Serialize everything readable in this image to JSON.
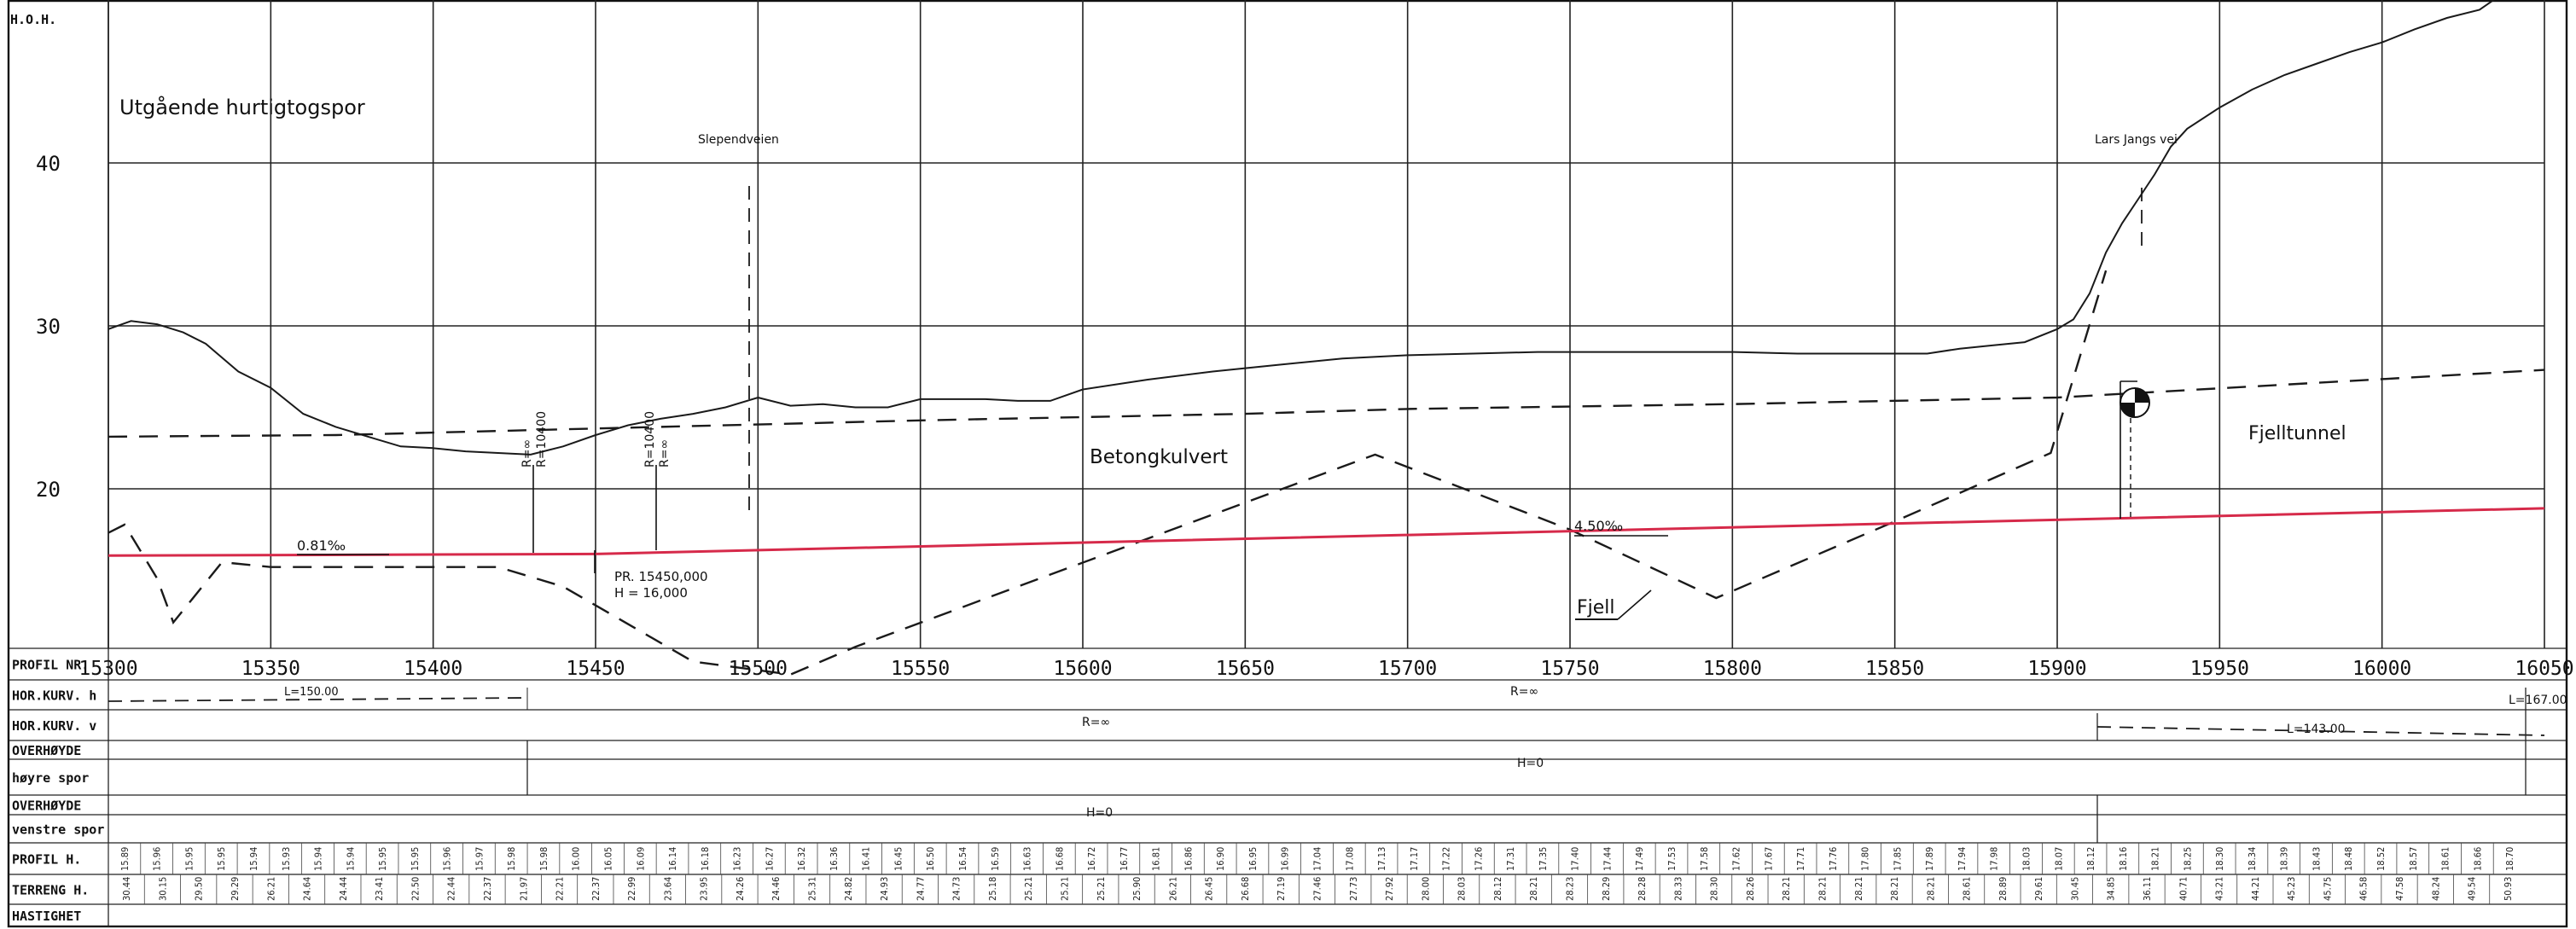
{
  "axis": {
    "y_label": "H.O.H.",
    "y_ticks": [
      {
        "value": 20,
        "label": "20"
      },
      {
        "value": 30,
        "label": "30"
      },
      {
        "value": 40,
        "label": "40"
      }
    ],
    "x_ticks": [
      "15300",
      "15350",
      "15400",
      "15450",
      "15500",
      "15550",
      "15600",
      "15650",
      "15700",
      "15750",
      "15800",
      "15850",
      "15900",
      "15950",
      "16000",
      "16050"
    ]
  },
  "labels": {
    "title": "Utgående hurtigtogspor",
    "road_1": "Slependveien",
    "road_2": "Lars Jangs vei",
    "structure_1": "Betongkulvert",
    "structure_2": "Fjelltunnel",
    "rock": "Fjell",
    "grade_1": "0.81‰",
    "grade_2": "4.50‰",
    "vc_1_top": "R=∞",
    "vc_1_bottom": "R=10400",
    "vc_2_top": "R=10400",
    "vc_2_bottom": "R=∞",
    "pvi_line1": "PR. 15450,000",
    "pvi_line2": "H = 16,000"
  },
  "table": {
    "rows": [
      {
        "label": "PROFIL NR.",
        "key": "profil_nr"
      },
      {
        "label": "HOR.KURV. h",
        "key": "hor_kurv_h"
      },
      {
        "label": "HOR.KURV. v",
        "key": "hor_kurv_v"
      },
      {
        "label": "OVERHØYDE",
        "key": "overhoyde_h_1"
      },
      {
        "label": "høyre spor",
        "key": "overhoyde_h_2"
      },
      {
        "label": "OVERHØYDE",
        "key": "overhoyde_v_1"
      },
      {
        "label": "venstre spor",
        "key": "overhoyde_v_2"
      },
      {
        "label": "PROFIL H.",
        "key": "profil_h"
      },
      {
        "label": "TERRENG H.",
        "key": "terreng_h"
      },
      {
        "label": "HASTIGHET",
        "key": "hastighet"
      }
    ],
    "hor_kurv_h_texts": [
      "L=150.00",
      "R=∞",
      "L=167.00"
    ],
    "hor_kurv_v_texts": [
      "R=∞",
      "L=143.00"
    ],
    "overhoyde_texts": [
      "H=0",
      "H=0"
    ]
  },
  "chart_data": {
    "type": "line",
    "xlim": [
      15300,
      16050
    ],
    "ylim": [
      10,
      50
    ],
    "series": [
      {
        "name": "terrain",
        "x": [
          15300,
          15307,
          15315,
          15323,
          15330,
          15340,
          15350,
          15360,
          15370,
          15380,
          15390,
          15400,
          15410,
          15420,
          15430,
          15440,
          15450,
          15460,
          15470,
          15480,
          15490,
          15500,
          15510,
          15520,
          15530,
          15540,
          15550,
          15560,
          15570,
          15580,
          15590,
          15600,
          15620,
          15640,
          15660,
          15680,
          15700,
          15720,
          15740,
          15760,
          15780,
          15800,
          15820,
          15840,
          15860,
          15870,
          15880,
          15890,
          15900,
          15905,
          15910,
          15915,
          15920,
          15925,
          15930,
          15935,
          15940,
          15950,
          15960,
          15970,
          15980,
          15990,
          16000,
          16010,
          16020,
          16030,
          16038
        ],
        "y": [
          29.8,
          30.3,
          30.1,
          29.6,
          28.9,
          27.2,
          26.2,
          24.6,
          23.8,
          23.2,
          22.6,
          22.5,
          22.3,
          22.2,
          22.1,
          22.6,
          23.3,
          23.9,
          24.3,
          24.6,
          25.0,
          25.6,
          25.1,
          25.2,
          25.0,
          25.0,
          25.5,
          25.5,
          25.5,
          25.4,
          25.4,
          26.1,
          26.7,
          27.2,
          27.6,
          28.0,
          28.2,
          28.3,
          28.4,
          28.4,
          28.4,
          28.4,
          28.3,
          28.3,
          28.3,
          28.6,
          28.8,
          29.0,
          29.8,
          30.4,
          32.0,
          34.5,
          36.3,
          37.8,
          39.3,
          41.0,
          42.1,
          43.4,
          44.5,
          45.4,
          46.1,
          46.8,
          47.4,
          48.2,
          48.9,
          49.4,
          50.5
        ]
      },
      {
        "name": "rock",
        "x": [
          15300,
          15305,
          15315,
          15320,
          15335,
          15350,
          15360,
          15370,
          15380,
          15390,
          15400,
          15420,
          15440,
          15480,
          15510,
          15530,
          15580,
          15690,
          15750,
          15795,
          15850,
          15898,
          15915
        ],
        "y": [
          17.3,
          17.8,
          14.5,
          11.8,
          15.5,
          15.2,
          15.2,
          15.2,
          15.2,
          15.2,
          15.2,
          15.2,
          14.0,
          9.4,
          8.6,
          10.3,
          14.0,
          22.1,
          17.5,
          13.3,
          18.0,
          22.2,
          33.4
        ]
      },
      {
        "name": "formation",
        "x": [
          15300,
          15370,
          15450,
          15550,
          15650,
          15700,
          15800,
          15900,
          16050
        ],
        "y": [
          23.2,
          23.3,
          23.7,
          24.2,
          24.6,
          24.9,
          25.2,
          25.6,
          27.3
        ]
      },
      {
        "name": "gradeline",
        "x": [
          15300,
          15450,
          16050
        ],
        "y": [
          15.9,
          16.0,
          18.8
        ]
      }
    ],
    "title": "Utgående hurtigtogspor",
    "ylabel": "H.O.H.",
    "xlabel": "PROFIL NR.",
    "profil_h": [
      "15.89",
      "15.96",
      "15.95",
      "15.95",
      "15.94",
      "15.93",
      "15.94",
      "15.94",
      "15.95",
      "15.95",
      "15.96",
      "15.97",
      "15.98",
      "15.98",
      "16.00",
      "16.05",
      "16.09",
      "16.14",
      "16.18",
      "16.23",
      "16.27",
      "16.32",
      "16.36",
      "16.41",
      "16.45",
      "16.50",
      "16.54",
      "16.59",
      "16.63",
      "16.68",
      "16.72",
      "16.77",
      "16.81",
      "16.86",
      "16.90",
      "16.95",
      "16.99",
      "17.04",
      "17.08",
      "17.13",
      "17.17",
      "17.22",
      "17.26",
      "17.31",
      "17.35",
      "17.40",
      "17.44",
      "17.49",
      "17.53",
      "17.58",
      "17.62",
      "17.67",
      "17.71",
      "17.76",
      "17.80",
      "17.85",
      "17.89",
      "17.94",
      "17.98",
      "18.03",
      "18.07",
      "18.12",
      "18.16",
      "18.21",
      "18.25",
      "18.30",
      "18.34",
      "18.39",
      "18.43",
      "18.48",
      "18.52",
      "18.57",
      "18.61",
      "18.66",
      "18.70"
    ],
    "terreng_h": [
      "30.44",
      "30.15",
      "29.50",
      "29.29",
      "26.21",
      "24.64",
      "24.44",
      "23.41",
      "22.50",
      "22.44",
      "22.37",
      "21.97",
      "22.21",
      "22.37",
      "22.99",
      "23.64",
      "23.95",
      "24.26",
      "24.46",
      "25.31",
      "24.82",
      "24.93",
      "24.77",
      "24.73",
      "25.18",
      "25.21",
      "25.21",
      "25.21",
      "25.90",
      "26.21",
      "26.45",
      "26.68",
      "27.19",
      "27.46",
      "27.73",
      "27.92",
      "28.00",
      "28.03",
      "28.12",
      "28.21",
      "28.23",
      "28.29",
      "28.28",
      "28.33",
      "28.30",
      "28.26",
      "28.21",
      "28.21",
      "28.21",
      "28.21",
      "28.21",
      "28.61",
      "28.89",
      "29.61",
      "30.45",
      "34.85",
      "36.11",
      "40.71",
      "43.21",
      "44.21",
      "45.23",
      "45.75",
      "46.58",
      "47.58",
      "48.24",
      "49.54",
      "50.93"
    ]
  }
}
